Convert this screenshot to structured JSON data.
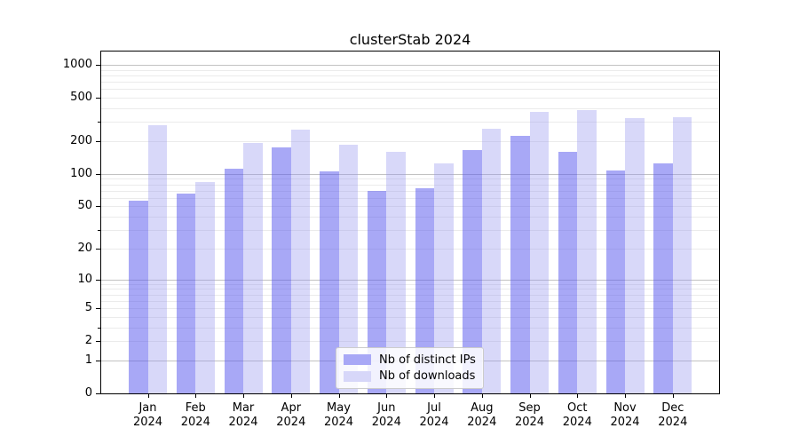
{
  "title": "clusterStab 2024",
  "legend": {
    "items": [
      {
        "label": "Nb of distinct IPs",
        "swatch_color": "#a8a8f6"
      },
      {
        "label": "Nb of downloads",
        "swatch_color": "#d7d7f9"
      }
    ]
  },
  "y_axis": {
    "tick_labels": [
      "0",
      "1",
      "2",
      "5",
      "10",
      "20",
      "50",
      "100",
      "200",
      "500",
      "1000"
    ],
    "tick_values": [
      0,
      1,
      2,
      5,
      10,
      20,
      50,
      100,
      200,
      500,
      1000
    ],
    "unlabeled_tick_values": [
      3,
      30,
      300
    ],
    "major_grid_values": [
      1,
      10,
      100,
      1000
    ],
    "scale": "log1p",
    "max": 1320
  },
  "x_axis": {
    "months": [
      "Jan",
      "Feb",
      "Mar",
      "Apr",
      "May",
      "Jun",
      "Jul",
      "Aug",
      "Sep",
      "Oct",
      "Nov",
      "Dec"
    ],
    "year": "2024"
  },
  "chart_data": {
    "type": "bar",
    "title": "clusterStab 2024",
    "categories": [
      "Jan 2024",
      "Feb 2024",
      "Mar 2024",
      "Apr 2024",
      "May 2024",
      "Jun 2024",
      "Jul 2024",
      "Aug 2024",
      "Sep 2024",
      "Oct 2024",
      "Nov 2024",
      "Dec 2024"
    ],
    "series": [
      {
        "name": "Nb of distinct IPs",
        "values": [
          56,
          66,
          112,
          175,
          106,
          69,
          73,
          166,
          225,
          160,
          108,
          125
        ]
      },
      {
        "name": "Nb of downloads",
        "values": [
          280,
          84,
          193,
          255,
          186,
          160,
          126,
          260,
          370,
          385,
          325,
          330
        ]
      }
    ],
    "xlabel": "",
    "ylabel": "",
    "y_scale": "symlog (position proportional to log10(1+value))",
    "y_ticks": [
      0,
      1,
      2,
      5,
      10,
      20,
      50,
      100,
      200,
      500,
      1000
    ],
    "ylim": [
      0,
      1320
    ],
    "grid": "horizontal, major lines at 1/10/100/1000, minor lines at 2-9 per decade",
    "legend_position": "lower center"
  },
  "colors": {
    "bar_ips": "rgba(88,88,238,0.52)",
    "bar_downloads": "rgba(148,148,240,0.37)",
    "grid_major": "#c2c2c2",
    "grid_minor": "#ebebeb",
    "axis": "#000000",
    "background": "#ffffff"
  }
}
